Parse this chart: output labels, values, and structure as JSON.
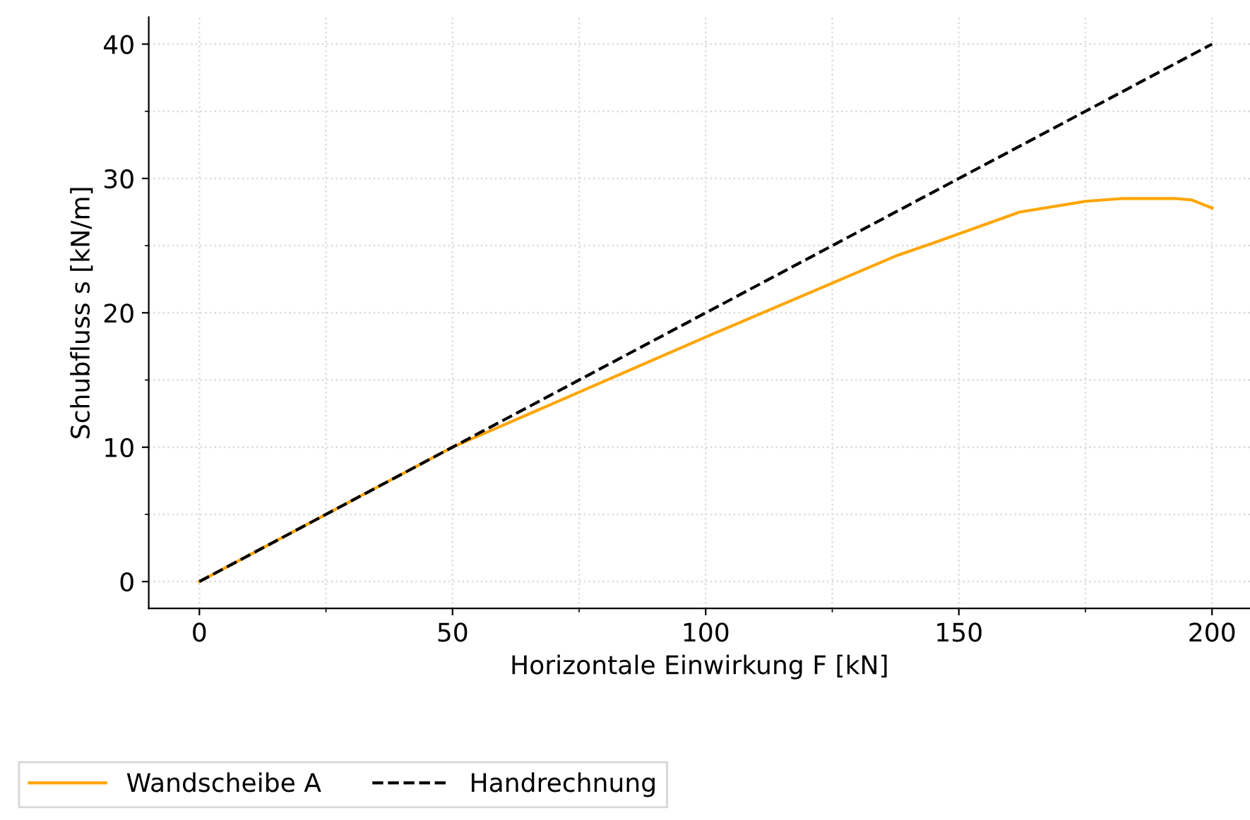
{
  "chart_data": {
    "type": "line",
    "xlabel": "Horizontale Einwirkung F [kN]",
    "ylabel": "Schubfluss s [kN/m]",
    "xlim": [
      -10,
      207.5
    ],
    "ylim": [
      -2,
      42
    ],
    "xticks": [
      0,
      {
        "value": 25,
        "label": null
      },
      50,
      {
        "value": 75,
        "label": null
      },
      100,
      {
        "value": 125,
        "label": null
      },
      150,
      {
        "value": 175,
        "label": null
      },
      200
    ],
    "yticks": [
      0,
      {
        "value": 5,
        "label": null
      },
      10,
      {
        "value": 15,
        "label": null
      },
      20,
      {
        "value": 25,
        "label": null
      },
      30,
      {
        "value": 35,
        "label": null
      },
      40
    ],
    "grid": true,
    "legend": "bottom left",
    "series": [
      {
        "name": "Wandscheibe A",
        "color": "#ffa500",
        "line_style": "solid",
        "x": [
          0,
          50,
          61,
          100,
          138,
          145,
          162,
          175,
          182,
          193,
          196,
          200
        ],
        "values": [
          0,
          10.0,
          11.8,
          18.2,
          24.3,
          25.2,
          27.5,
          28.3,
          28.5,
          28.5,
          28.4,
          27.8
        ]
      },
      {
        "name": "Handrechnung",
        "color": "#000000",
        "line_style": "dashed",
        "x": [
          0,
          200
        ],
        "values": [
          0,
          40
        ]
      }
    ]
  }
}
